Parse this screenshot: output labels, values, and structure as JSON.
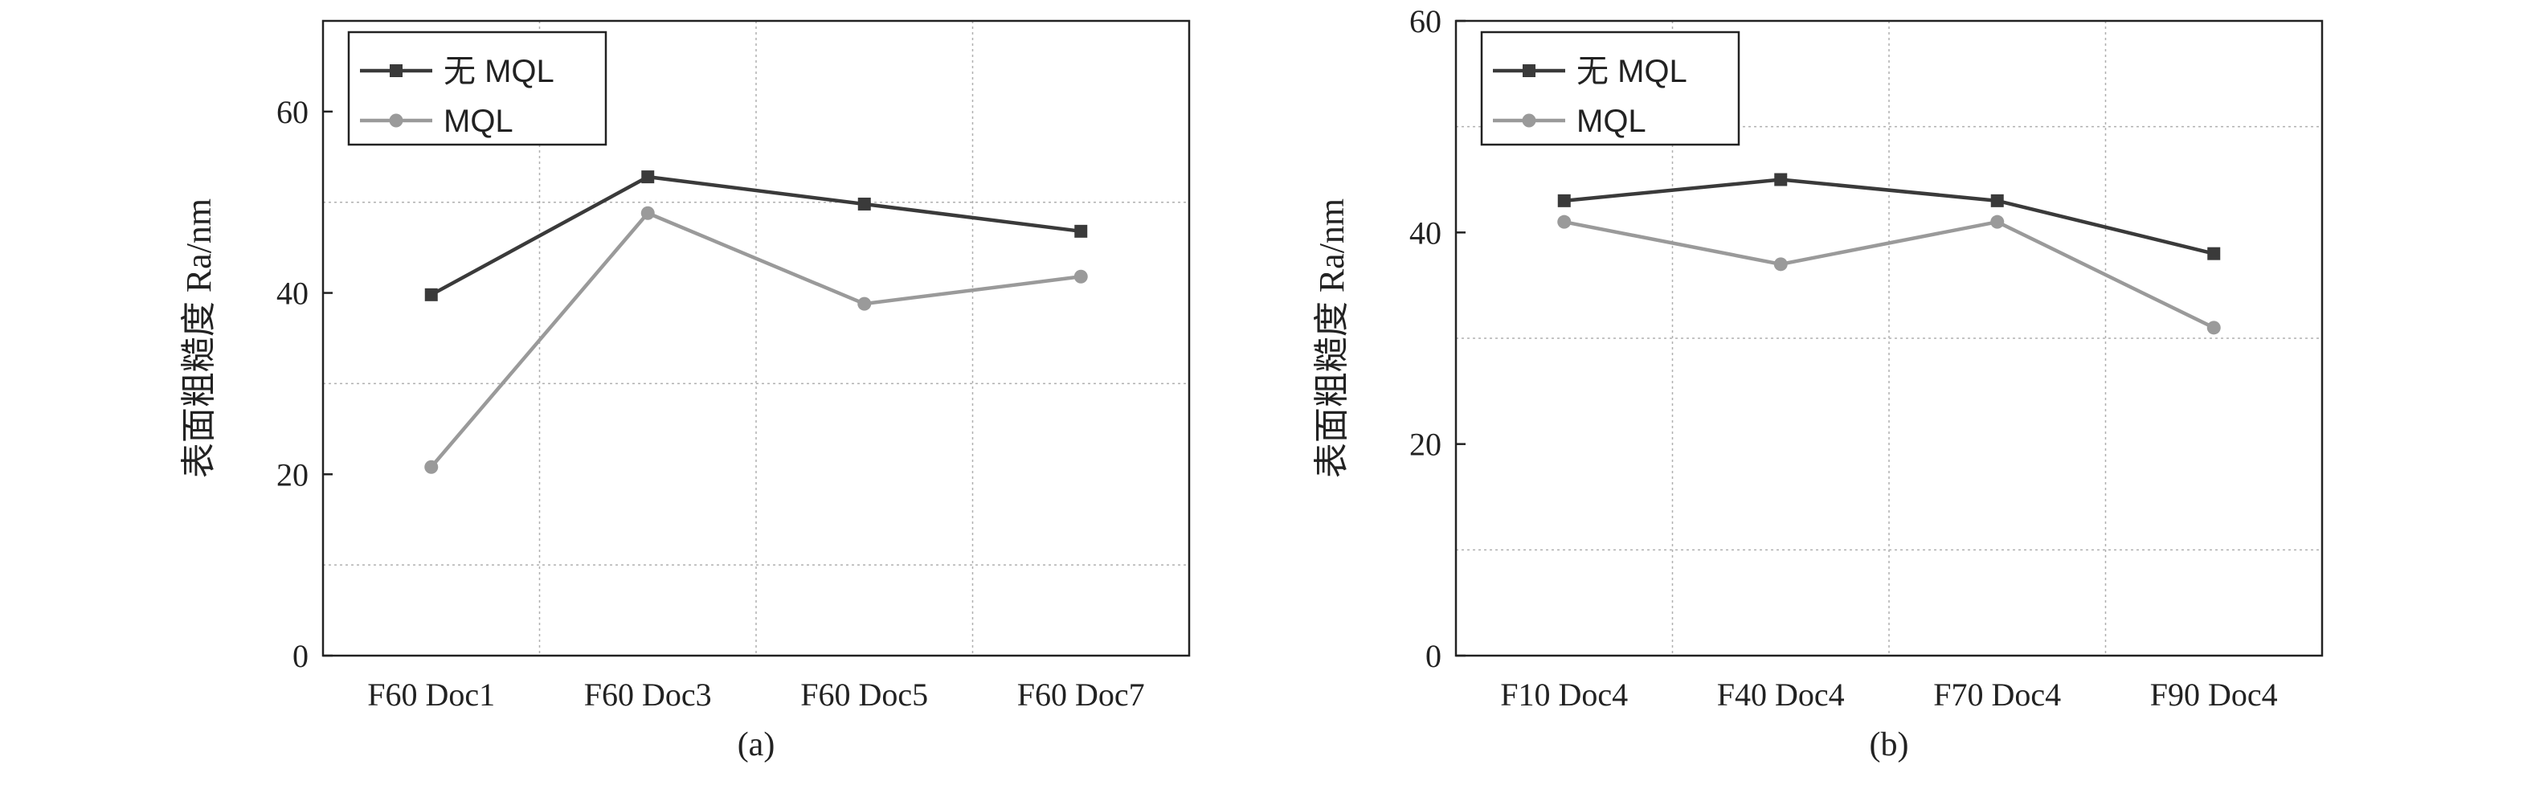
{
  "chart_data": [
    {
      "type": "line",
      "caption": "(a)",
      "ylabel": "表面粗糙度 Ra/nm",
      "ylim": [
        0,
        70
      ],
      "yticks": [
        0,
        20,
        40,
        60
      ],
      "grid": true,
      "legend_position": "top-left",
      "categories": [
        "F60 Doc1",
        "F60 Doc3",
        "F60 Doc5",
        "F60 Doc7"
      ],
      "series": [
        {
          "name": "无 MQL",
          "marker": "square",
          "color": "#3a3a3a",
          "values": [
            39.8,
            52.8,
            49.8,
            46.8
          ]
        },
        {
          "name": "MQL",
          "marker": "circle",
          "color": "#9a9a9a",
          "values": [
            20.8,
            48.8,
            38.8,
            41.8
          ]
        }
      ]
    },
    {
      "type": "line",
      "caption": "(b)",
      "ylabel": "表面粗糙度 Ra/nm",
      "ylim": [
        0,
        60
      ],
      "yticks": [
        0,
        20,
        40,
        60
      ],
      "grid": true,
      "legend_position": "top-left",
      "categories": [
        "F10 Doc4",
        "F40 Doc4",
        "F70 Doc4",
        "F90 Doc4"
      ],
      "series": [
        {
          "name": "无 MQL",
          "marker": "square",
          "color": "#3a3a3a",
          "values": [
            43,
            45,
            43,
            38
          ]
        },
        {
          "name": "MQL",
          "marker": "circle",
          "color": "#9a9a9a",
          "values": [
            41,
            37,
            41,
            31
          ]
        }
      ]
    }
  ]
}
